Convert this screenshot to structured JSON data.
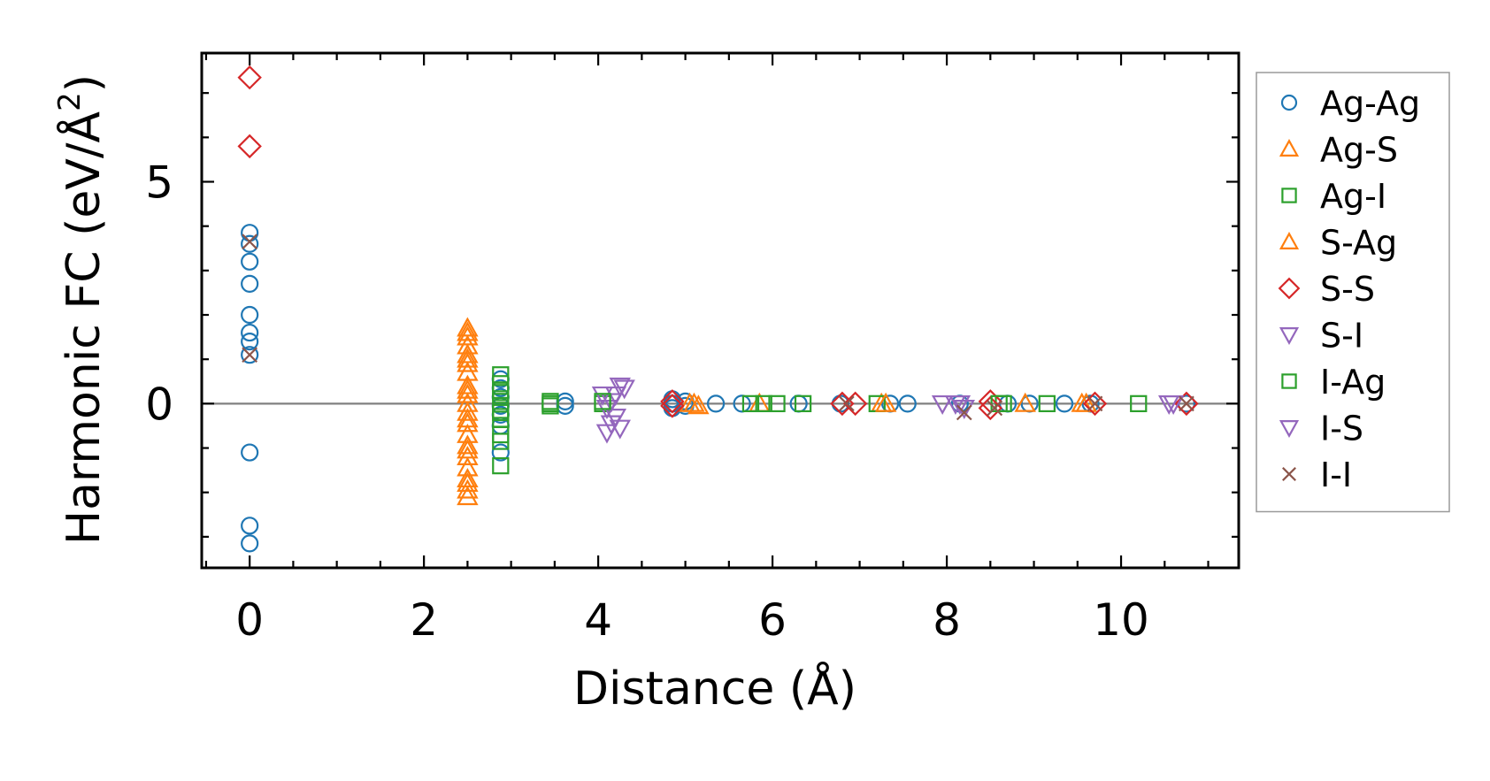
{
  "chart_data": {
    "type": "scatter",
    "title": "",
    "xlabel": "Distance (Å)",
    "ylabel_main": "Harmonic FC (eV/Å",
    "ylabel_sup": "2",
    "ylabel_close": ")",
    "xlim": [
      -0.55,
      11.35
    ],
    "ylim": [
      -3.7,
      7.9
    ],
    "xticks": [
      0,
      2,
      4,
      6,
      8,
      10
    ],
    "yticks": [
      0,
      5
    ],
    "xtick_labels": [
      "0",
      "2",
      "4",
      "6",
      "8",
      "10"
    ],
    "ytick_labels": [
      "0",
      "5"
    ],
    "reference_line_y": 0,
    "legend_position": "outside-right",
    "series": [
      {
        "name": "Ag-Ag",
        "marker": "circle",
        "color": "#1f77b4",
        "fill": false,
        "points": [
          [
            0,
            3.85
          ],
          [
            0,
            3.6
          ],
          [
            0,
            3.2
          ],
          [
            0,
            2.7
          ],
          [
            0,
            2.0
          ],
          [
            0,
            1.6
          ],
          [
            0,
            1.4
          ],
          [
            0,
            1.1
          ],
          [
            0,
            -1.1
          ],
          [
            0,
            -2.75
          ],
          [
            0,
            -3.15
          ],
          [
            2.88,
            0.55
          ],
          [
            2.88,
            0.35
          ],
          [
            2.88,
            0.15
          ],
          [
            2.88,
            -0.05
          ],
          [
            2.88,
            -0.25
          ],
          [
            2.88,
            -0.5
          ],
          [
            2.88,
            -1.1
          ],
          [
            3.62,
            0.05
          ],
          [
            3.62,
            -0.05
          ],
          [
            4.85,
            0.1
          ],
          [
            4.85,
            0.0
          ],
          [
            4.85,
            -0.1
          ],
          [
            5.0,
            0.05
          ],
          [
            5.0,
            -0.05
          ],
          [
            5.35,
            0.0
          ],
          [
            5.65,
            0.0
          ],
          [
            6.3,
            0.0
          ],
          [
            6.78,
            0.0
          ],
          [
            7.35,
            0.0
          ],
          [
            7.55,
            0.0
          ],
          [
            8.15,
            0.0
          ],
          [
            8.7,
            0.0
          ],
          [
            8.95,
            0.0
          ],
          [
            9.35,
            0.0
          ],
          [
            9.65,
            0.0
          ],
          [
            10.75,
            0.0
          ]
        ]
      },
      {
        "name": "Ag-S",
        "marker": "triangle-up",
        "color": "#ff7f0e",
        "fill": false,
        "points": [
          [
            2.5,
            1.7
          ],
          [
            2.5,
            1.5
          ],
          [
            2.5,
            1.3
          ],
          [
            2.5,
            1.1
          ],
          [
            2.5,
            0.9
          ],
          [
            2.5,
            0.7
          ],
          [
            2.5,
            0.4
          ],
          [
            2.5,
            0.2
          ],
          [
            2.5,
            0.0
          ],
          [
            2.5,
            -0.2
          ],
          [
            2.5,
            -0.45
          ],
          [
            2.5,
            -0.7
          ],
          [
            2.5,
            -0.95
          ],
          [
            2.5,
            -1.2
          ],
          [
            2.5,
            -1.45
          ],
          [
            2.5,
            -1.7
          ],
          [
            2.5,
            -1.95
          ],
          [
            2.5,
            -2.1
          ],
          [
            5.05,
            0.0
          ],
          [
            5.15,
            -0.05
          ],
          [
            5.85,
            0.0
          ],
          [
            7.25,
            0.0
          ],
          [
            8.9,
            0.0
          ],
          [
            9.55,
            0.0
          ]
        ]
      },
      {
        "name": "Ag-I",
        "marker": "square",
        "color": "#2ca02c",
        "fill": false,
        "points": [
          [
            2.88,
            0.65
          ],
          [
            2.88,
            0.45
          ],
          [
            2.88,
            0.25
          ],
          [
            2.88,
            0.05
          ],
          [
            2.88,
            -0.15
          ],
          [
            2.88,
            -0.35
          ],
          [
            2.88,
            -0.7
          ],
          [
            2.88,
            -1.4
          ],
          [
            3.45,
            0.05
          ],
          [
            3.45,
            -0.05
          ],
          [
            4.05,
            0.0
          ],
          [
            5.75,
            0.0
          ],
          [
            6.05,
            0.0
          ],
          [
            6.35,
            0.0
          ],
          [
            7.2,
            0.0
          ],
          [
            8.65,
            0.0
          ],
          [
            9.15,
            0.0
          ],
          [
            10.2,
            0.0
          ]
        ]
      },
      {
        "name": "S-Ag",
        "marker": "triangle-up",
        "color": "#ff7f0e",
        "fill": false,
        "points": [
          [
            2.5,
            1.6
          ],
          [
            2.5,
            1.0
          ],
          [
            2.5,
            0.3
          ],
          [
            2.5,
            -0.35
          ],
          [
            2.5,
            -1.05
          ],
          [
            2.5,
            -1.8
          ],
          [
            5.1,
            0.0
          ],
          [
            7.3,
            0.0
          ],
          [
            9.6,
            0.0
          ]
        ]
      },
      {
        "name": "S-S",
        "marker": "diamond",
        "color": "#d62728",
        "fill": false,
        "points": [
          [
            0,
            7.35
          ],
          [
            0,
            5.8
          ],
          [
            4.85,
            0.05
          ],
          [
            4.85,
            -0.05
          ],
          [
            6.8,
            0.0
          ],
          [
            6.95,
            0.0
          ],
          [
            8.5,
            0.05
          ],
          [
            8.5,
            -0.1
          ],
          [
            9.7,
            0.0
          ],
          [
            10.75,
            0.0
          ]
        ]
      },
      {
        "name": "S-I",
        "marker": "triangle-down",
        "color": "#9467bd",
        "fill": false,
        "points": [
          [
            4.25,
            0.4
          ],
          [
            4.2,
            0.2
          ],
          [
            4.15,
            0.05
          ],
          [
            4.1,
            -0.1
          ],
          [
            4.2,
            -0.3
          ],
          [
            4.25,
            -0.55
          ],
          [
            4.1,
            -0.65
          ],
          [
            4.05,
            0.2
          ],
          [
            7.95,
            0.0
          ],
          [
            8.1,
            0.0
          ],
          [
            10.55,
            0.0
          ]
        ]
      },
      {
        "name": "I-Ag",
        "marker": "square",
        "color": "#2ca02c",
        "fill": false,
        "points": [
          [
            2.88,
            0.3
          ],
          [
            2.88,
            -0.2
          ],
          [
            2.88,
            -0.85
          ],
          [
            3.45,
            0.0
          ],
          [
            4.05,
            0.05
          ],
          [
            5.9,
            0.0
          ],
          [
            8.6,
            0.0
          ]
        ]
      },
      {
        "name": "I-S",
        "marker": "triangle-down",
        "color": "#9467bd",
        "fill": false,
        "points": [
          [
            4.3,
            0.35
          ],
          [
            4.15,
            -0.45
          ],
          [
            8.15,
            0.0
          ],
          [
            8.2,
            -0.1
          ],
          [
            10.6,
            0.0
          ]
        ]
      },
      {
        "name": "I-I",
        "marker": "cross",
        "color": "#8c564b",
        "fill": false,
        "points": [
          [
            0,
            3.65
          ],
          [
            0,
            1.1
          ],
          [
            6.85,
            0.0
          ],
          [
            8.2,
            -0.2
          ],
          [
            8.55,
            -0.1
          ],
          [
            9.7,
            0.0
          ],
          [
            10.75,
            0.0
          ]
        ]
      }
    ]
  }
}
